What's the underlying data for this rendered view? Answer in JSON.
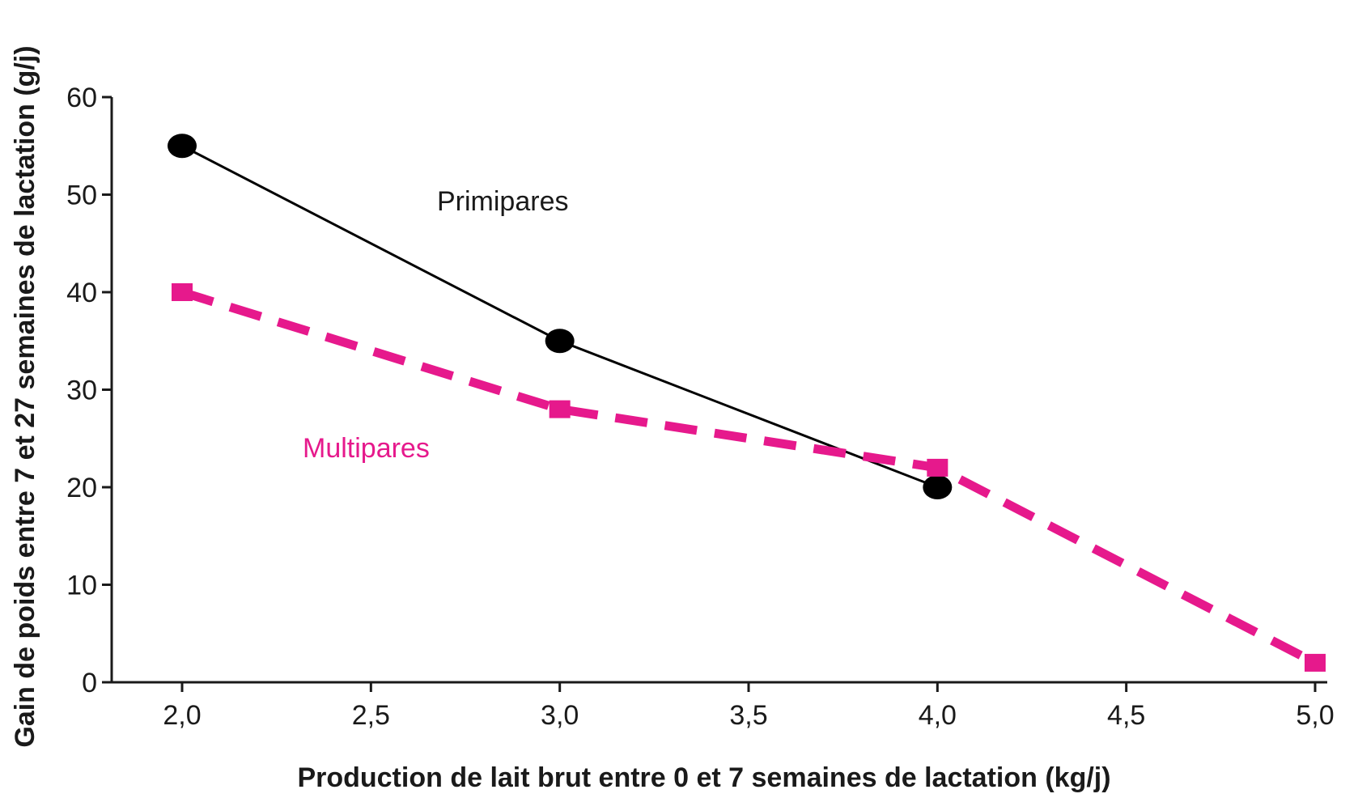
{
  "chart_data": {
    "type": "line",
    "xlabel": "Production de lait brut entre 0 et 7 semaines de lactation (kg/j)",
    "ylabel": "Gain de poids  entre 7 et 27 semaines de lactation (g/j)",
    "xlim": [
      2.0,
      5.0
    ],
    "ylim": [
      0,
      60
    ],
    "x_ticks": [
      "2,0",
      "2,5",
      "3,0",
      "3,5",
      "4,0",
      "4,5",
      "5,0"
    ],
    "y_ticks": [
      "0",
      "10",
      "20",
      "30",
      "40",
      "50",
      "60"
    ],
    "grid": false,
    "series": [
      {
        "name": "Primipares",
        "color": "#000000",
        "line_style": "solid",
        "marker": "circle",
        "x": [
          2.0,
          3.0,
          4.0
        ],
        "y": [
          55,
          35,
          20
        ]
      },
      {
        "name": "Multipares",
        "color": "#e6198c",
        "line_style": "dashed",
        "marker": "square",
        "x": [
          2.0,
          3.0,
          4.0,
          5.0
        ],
        "y": [
          40,
          28,
          22,
          2
        ]
      }
    ]
  }
}
